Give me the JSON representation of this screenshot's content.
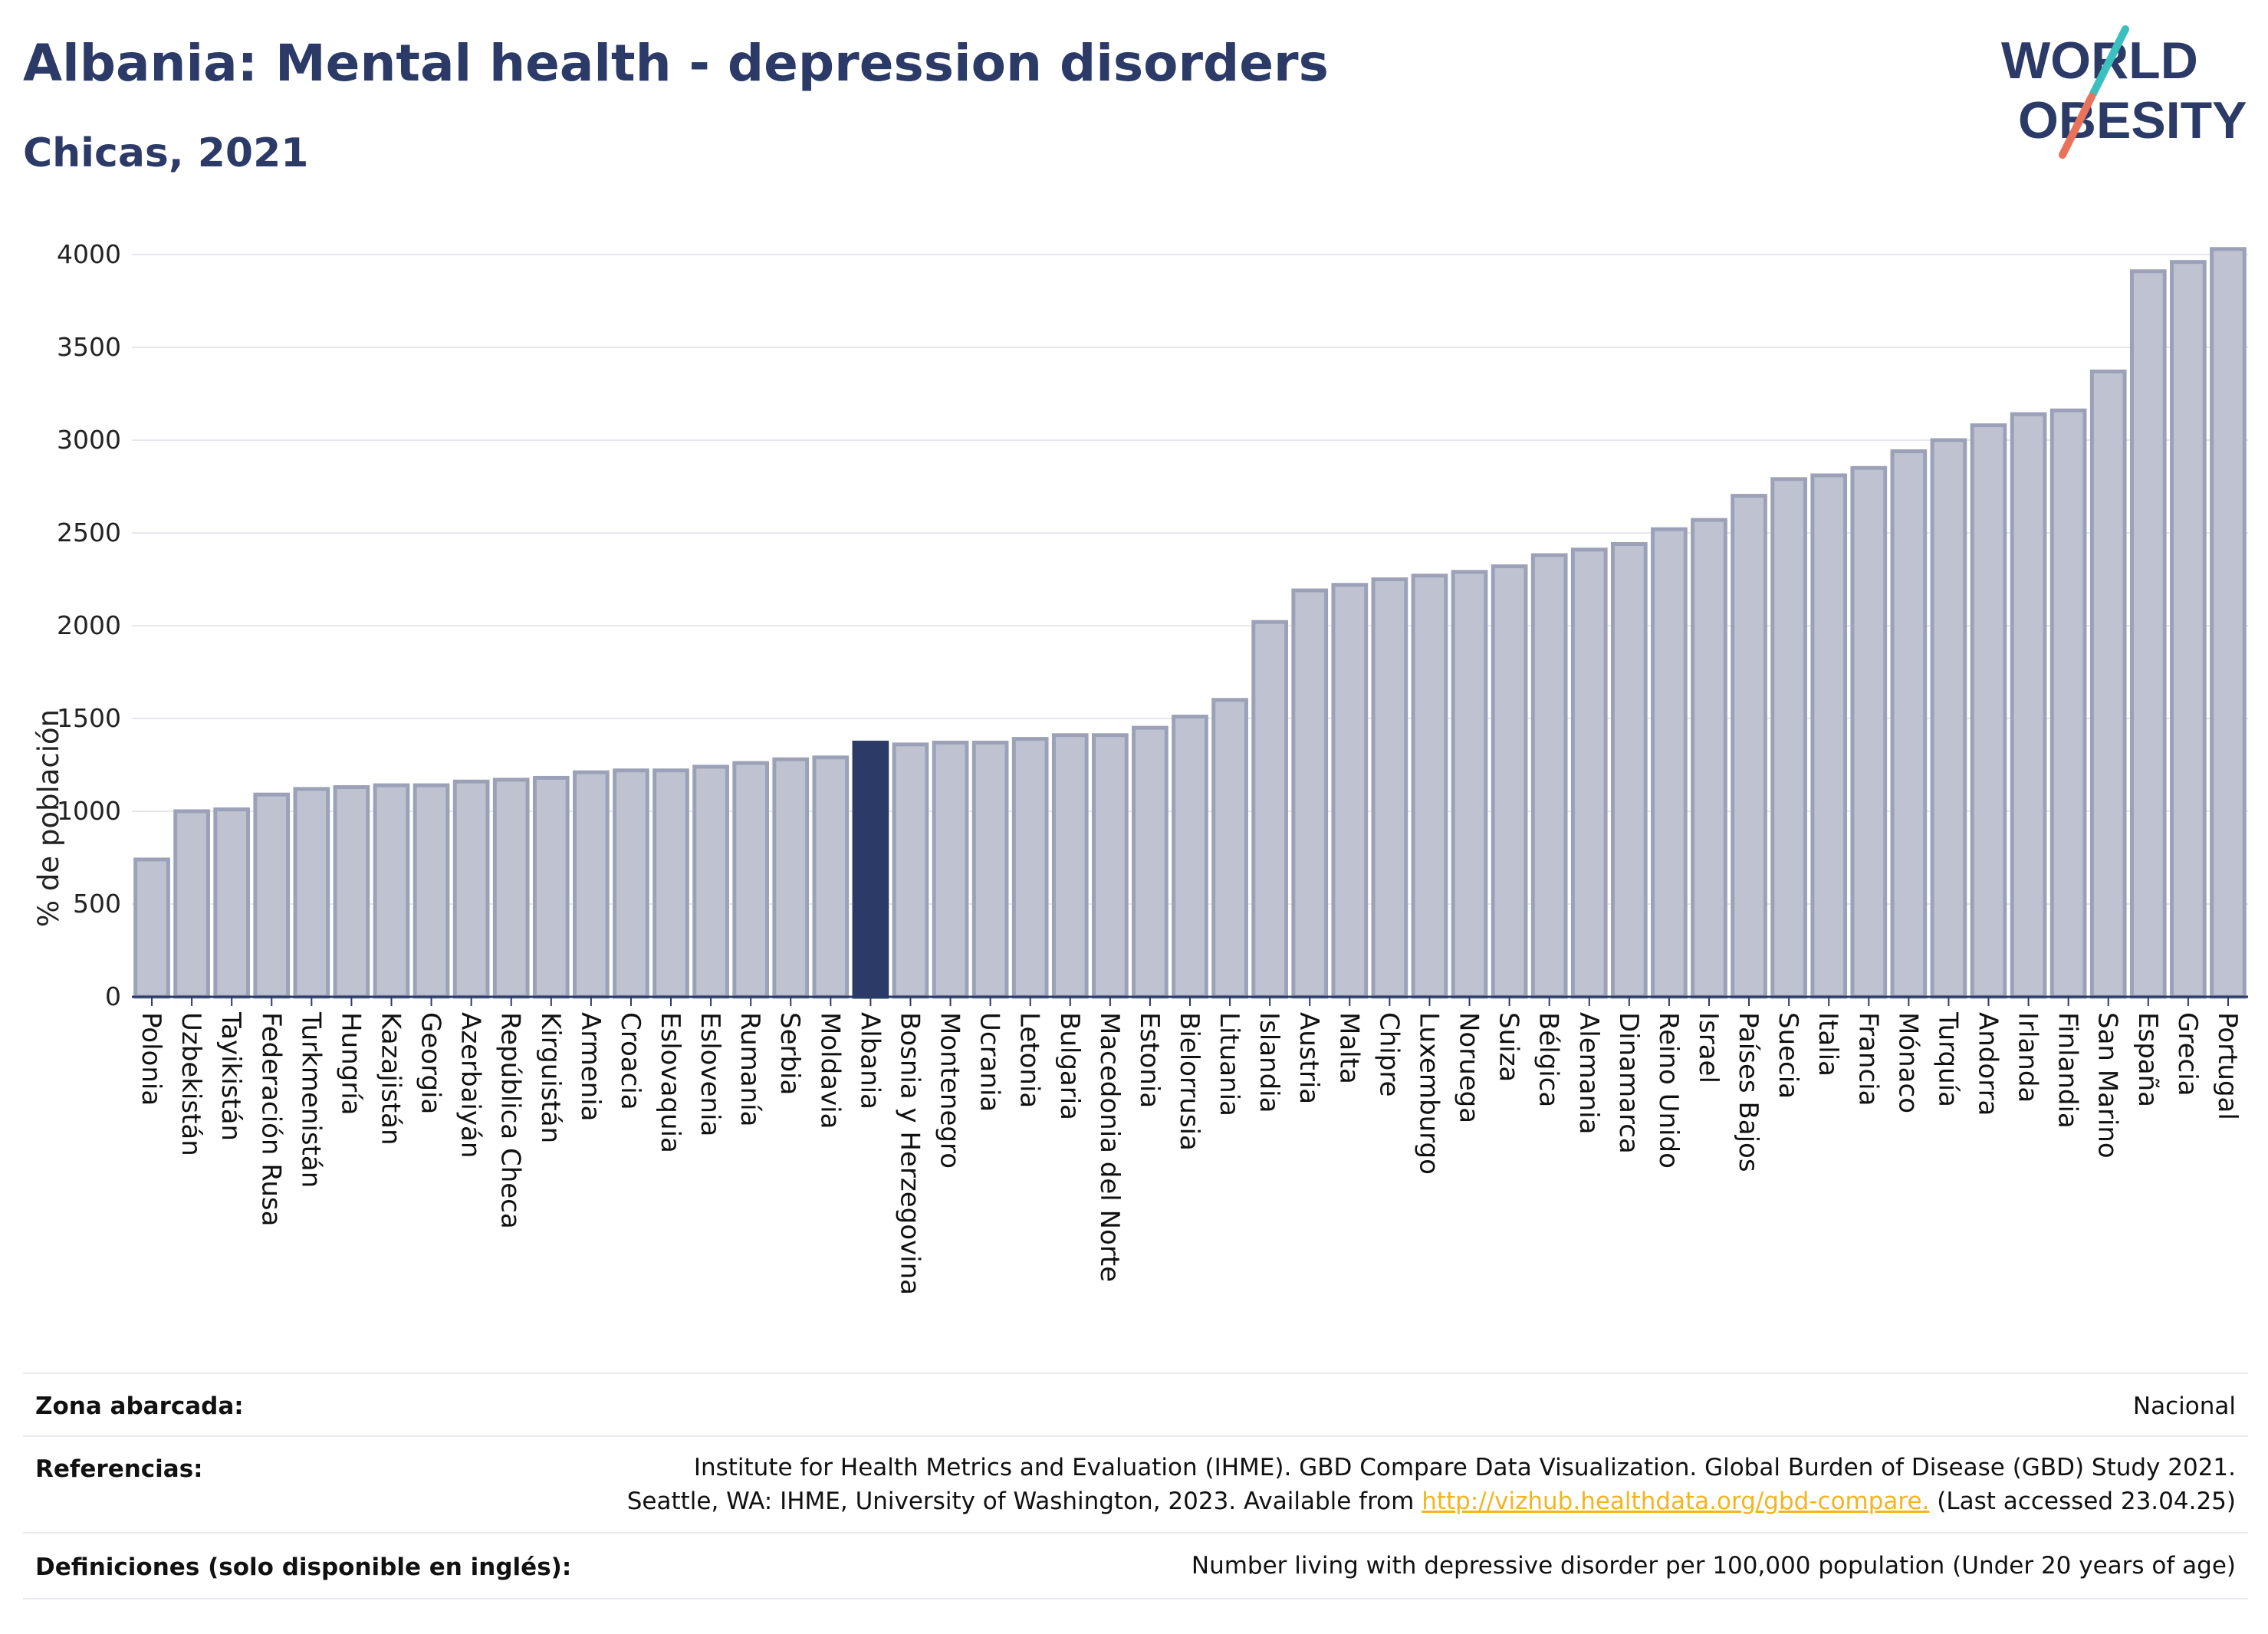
{
  "header": {
    "title": "Albania: Mental health - depression disorders",
    "subtitle": "Chicas, 2021"
  },
  "logo": {
    "line1": "WORLD",
    "line2": "OBESITY",
    "accent_teal": "#3cbfbf",
    "accent_coral": "#e8735a",
    "text_color": "#2b3a67"
  },
  "chart_data": {
    "type": "bar",
    "ylabel": "% de población",
    "xlabel": "",
    "ylim": [
      0,
      4000
    ],
    "yticks": [
      0,
      500,
      1000,
      1500,
      2000,
      2500,
      3000,
      3500,
      4000
    ],
    "highlight": "Albania",
    "bar_color": "#bfc3d1",
    "bar_border": "#9ba2b8",
    "highlight_color": "#2b3a67",
    "grid": true,
    "categories": [
      "Polonia",
      "Uzbekistán",
      "Tayikistán",
      "Federación Rusa",
      "Turkmenistán",
      "Hungría",
      "Kazajistán",
      "Georgia",
      "Azerbaiyán",
      "República Checa",
      "Kirguistán",
      "Armenia",
      "Croacia",
      "Eslovaquia",
      "Eslovenia",
      "Rumanía",
      "Serbia",
      "Moldavia",
      "Albania",
      "Bosnia y Herzegovina",
      "Montenegro",
      "Ucrania",
      "Letonia",
      "Bulgaria",
      "Macedonia del Norte",
      "Estonia",
      "Bielorrusia",
      "Lituania",
      "Islandia",
      "Austria",
      "Malta",
      "Chipre",
      "Luxemburgo",
      "Noruega",
      "Suiza",
      "Bélgica",
      "Alemania",
      "Dinamarca",
      "Reino Unido",
      "Israel",
      "Países Bajos",
      "Suecia",
      "Italia",
      "Francia",
      "Mónaco",
      "Turquía",
      "Andorra",
      "Irlanda",
      "Finlandia",
      "San Marino",
      "España",
      "Grecia",
      "Portugal"
    ],
    "values": [
      740,
      1000,
      1010,
      1090,
      1120,
      1130,
      1140,
      1140,
      1160,
      1170,
      1180,
      1210,
      1220,
      1220,
      1240,
      1260,
      1280,
      1290,
      1370,
      1360,
      1370,
      1370,
      1390,
      1410,
      1410,
      1450,
      1510,
      1600,
      2020,
      2190,
      2220,
      2250,
      2270,
      2290,
      2320,
      2380,
      2410,
      2440,
      2520,
      2570,
      2700,
      2790,
      2810,
      2850,
      2940,
      3000,
      3080,
      3140,
      3160,
      3370,
      3910,
      3960,
      4030
    ]
  },
  "footer": {
    "zona_label": "Zona abarcada:",
    "zona_value": "Nacional",
    "ref_label": "Referencias:",
    "ref_line1": "Institute for Health Metrics and Evaluation (IHME). GBD Compare Data Visualization. Global Burden of Disease (GBD) Study 2021.",
    "ref_line2_pre": "Seattle, WA: IHME, University of Washington, 2023. Available from ",
    "ref_link": "http://vizhub.healthdata.org/gbd-compare.",
    "ref_line2_post": " (Last accessed 23.04.25)",
    "def_label": "Definiciones (solo disponible en inglés):",
    "def_value": "Number living with depressive disorder per 100,000 population (Under 20 years of age)"
  }
}
